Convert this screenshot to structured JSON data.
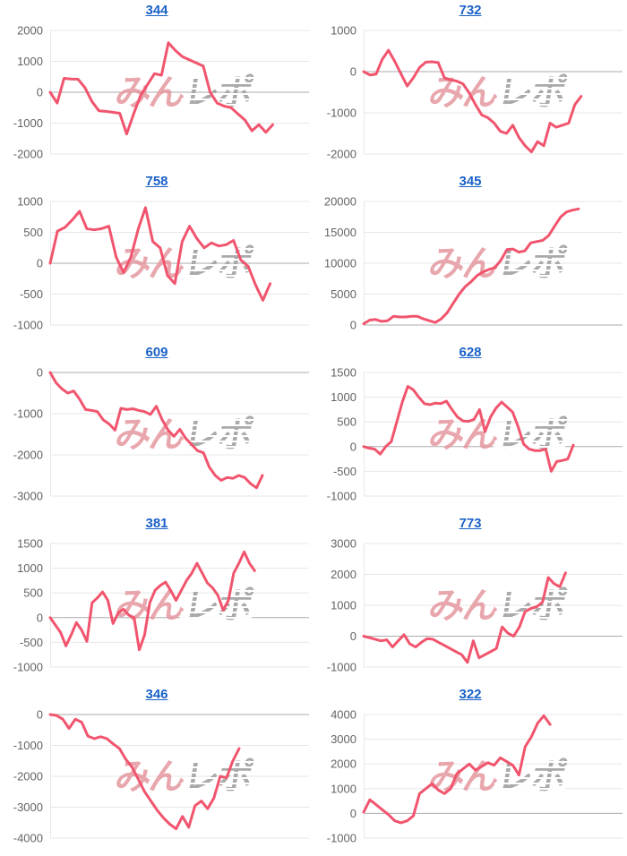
{
  "theme": {
    "series_color": "#f1556e",
    "grid_color": "#e7e7e7",
    "zero_line_color": "#ababab",
    "tick_label_color": "#636363",
    "title_link_color": "#1a61c7",
    "watermark_pink": "#e5979f",
    "watermark_gray": "#a6a6a6",
    "background": "#ffffff"
  },
  "watermark": {
    "pink_text": "みん",
    "gray_text": "レポ"
  },
  "chart_data": [
    {
      "type": "line",
      "title": "344",
      "xlabel": "",
      "ylabel": "",
      "ylim": [
        -2000,
        2000
      ],
      "y_ticks": [
        2000,
        1000,
        0,
        -1000,
        -2000
      ],
      "grid": true,
      "legend": "none",
      "x_end_fraction": 0.86,
      "values": [
        0,
        -350,
        450,
        430,
        420,
        150,
        -300,
        -600,
        -620,
        -650,
        -680,
        -1350,
        -700,
        -100,
        250,
        600,
        550,
        1600,
        1350,
        1150,
        1050,
        950,
        850,
        0,
        -350,
        -450,
        -500,
        -700,
        -900,
        -1250,
        -1050,
        -1300,
        -1050
      ]
    },
    {
      "type": "line",
      "title": "732",
      "xlabel": "",
      "ylabel": "",
      "ylim": [
        -2000,
        1000
      ],
      "y_ticks": [
        1000,
        0,
        -1000,
        -2000
      ],
      "grid": true,
      "legend": "none",
      "x_end_fraction": 0.84,
      "values": [
        0,
        -80,
        -60,
        300,
        520,
        250,
        -50,
        -350,
        -150,
        100,
        230,
        240,
        220,
        -150,
        -200,
        -230,
        -300,
        -520,
        -800,
        -1050,
        -1120,
        -1250,
        -1450,
        -1500,
        -1300,
        -1600,
        -1800,
        -1950,
        -1700,
        -1800,
        -1250,
        -1350,
        -1300,
        -1250,
        -800,
        -600
      ]
    },
    {
      "type": "line",
      "title": "758",
      "xlabel": "",
      "ylabel": "",
      "ylim": [
        -1000,
        1000
      ],
      "y_ticks": [
        1000,
        500,
        0,
        -500,
        -1000
      ],
      "grid": true,
      "legend": "none",
      "x_end_fraction": 0.85,
      "values": [
        0,
        520,
        580,
        700,
        840,
        560,
        540,
        560,
        600,
        100,
        -150,
        100,
        550,
        900,
        350,
        250,
        -200,
        -330,
        350,
        600,
        400,
        250,
        330,
        280,
        300,
        370,
        50,
        -50,
        -350,
        -600,
        -330
      ]
    },
    {
      "type": "line",
      "title": "345",
      "xlabel": "",
      "ylabel": "",
      "ylim": [
        0,
        20000
      ],
      "y_ticks": [
        20000,
        15000,
        10000,
        5000,
        0
      ],
      "grid": true,
      "legend": "none",
      "x_end_fraction": 0.83,
      "values": [
        200,
        800,
        900,
        600,
        700,
        1400,
        1300,
        1300,
        1400,
        1400,
        1000,
        700,
        400,
        1000,
        2000,
        3500,
        5000,
        6200,
        7000,
        8000,
        8600,
        9000,
        9300,
        10500,
        12200,
        12300,
        11800,
        12000,
        13300,
        13500,
        13700,
        14500,
        16000,
        17500,
        18300,
        18600,
        18800
      ]
    },
    {
      "type": "line",
      "title": "609",
      "xlabel": "",
      "ylabel": "",
      "ylim": [
        -3000,
        0
      ],
      "y_ticks": [
        0,
        -1000,
        -2000,
        -3000
      ],
      "grid": true,
      "legend": "none",
      "x_end_fraction": 0.82,
      "values": [
        0,
        -250,
        -400,
        -500,
        -450,
        -650,
        -900,
        -920,
        -950,
        -1150,
        -1250,
        -1400,
        -870,
        -900,
        -880,
        -920,
        -950,
        -1020,
        -820,
        -1150,
        -1400,
        -1550,
        -1380,
        -1600,
        -1750,
        -1900,
        -1950,
        -2300,
        -2500,
        -2620,
        -2550,
        -2570,
        -2500,
        -2550,
        -2700,
        -2800,
        -2500
      ]
    },
    {
      "type": "line",
      "title": "628",
      "xlabel": "",
      "ylabel": "",
      "ylim": [
        -1000,
        1500
      ],
      "y_ticks": [
        1500,
        1000,
        500,
        0,
        -500,
        -1000
      ],
      "grid": true,
      "legend": "none",
      "x_end_fraction": 0.81,
      "values": [
        0,
        -30,
        -50,
        -150,
        0,
        100,
        500,
        900,
        1220,
        1150,
        1000,
        870,
        850,
        880,
        870,
        920,
        750,
        600,
        520,
        510,
        550,
        750,
        300,
        600,
        780,
        900,
        800,
        700,
        400,
        50,
        -50,
        -80,
        -80,
        -50,
        -500,
        -300,
        -280,
        -250,
        30
      ]
    },
    {
      "type": "line",
      "title": "381",
      "xlabel": "",
      "ylabel": "",
      "ylim": [
        -1000,
        1500
      ],
      "y_ticks": [
        1500,
        1000,
        500,
        0,
        -500,
        -1000
      ],
      "grid": true,
      "legend": "none",
      "x_end_fraction": 0.79,
      "values": [
        0,
        -150,
        -300,
        -570,
        -350,
        -100,
        -250,
        -480,
        300,
        400,
        520,
        350,
        -120,
        100,
        170,
        50,
        0,
        -650,
        -350,
        300,
        550,
        650,
        720,
        550,
        350,
        550,
        750,
        900,
        1100,
        900,
        700,
        600,
        450,
        150,
        350,
        900,
        1100,
        1330,
        1100,
        950
      ]
    },
    {
      "type": "line",
      "title": "773",
      "xlabel": "",
      "ylabel": "",
      "ylim": [
        -1000,
        3000
      ],
      "y_ticks": [
        3000,
        2000,
        1000,
        0,
        -1000
      ],
      "grid": true,
      "legend": "none",
      "x_end_fraction": 0.78,
      "values": [
        0,
        -50,
        -100,
        -150,
        -120,
        -350,
        -150,
        50,
        -250,
        -350,
        -200,
        -80,
        -100,
        -200,
        -300,
        -400,
        -500,
        -600,
        -850,
        -150,
        -700,
        -600,
        -500,
        -400,
        300,
        100,
        0,
        300,
        800,
        900,
        950,
        1100,
        1900,
        1700,
        1600,
        2050
      ]
    },
    {
      "type": "line",
      "title": "346",
      "xlabel": "",
      "ylabel": "",
      "ylim": [
        -4000,
        0
      ],
      "y_ticks": [
        0,
        -1000,
        -2000,
        -3000,
        -4000
      ],
      "grid": true,
      "legend": "none",
      "x_end_fraction": 0.73,
      "values": [
        0,
        -30,
        -150,
        -450,
        -150,
        -250,
        -700,
        -780,
        -720,
        -780,
        -950,
        -1100,
        -1450,
        -1700,
        -2100,
        -2500,
        -2800,
        -3100,
        -3350,
        -3550,
        -3700,
        -3300,
        -3650,
        -2950,
        -2800,
        -3050,
        -2700,
        -2000,
        -2050,
        -1500,
        -1100
      ]
    },
    {
      "type": "line",
      "title": "322",
      "xlabel": "",
      "ylabel": "",
      "ylim": [
        -1000,
        4000
      ],
      "y_ticks": [
        4000,
        3000,
        2000,
        1000,
        0,
        -1000
      ],
      "grid": true,
      "legend": "none",
      "x_end_fraction": 0.72,
      "values": [
        50,
        550,
        350,
        150,
        -50,
        -300,
        -380,
        -300,
        -100,
        800,
        1000,
        1200,
        950,
        800,
        1000,
        1600,
        1800,
        2000,
        1750,
        1900,
        2050,
        1950,
        2250,
        2100,
        1950,
        1550,
        2700,
        3100,
        3650,
        3950,
        3600
      ]
    }
  ]
}
